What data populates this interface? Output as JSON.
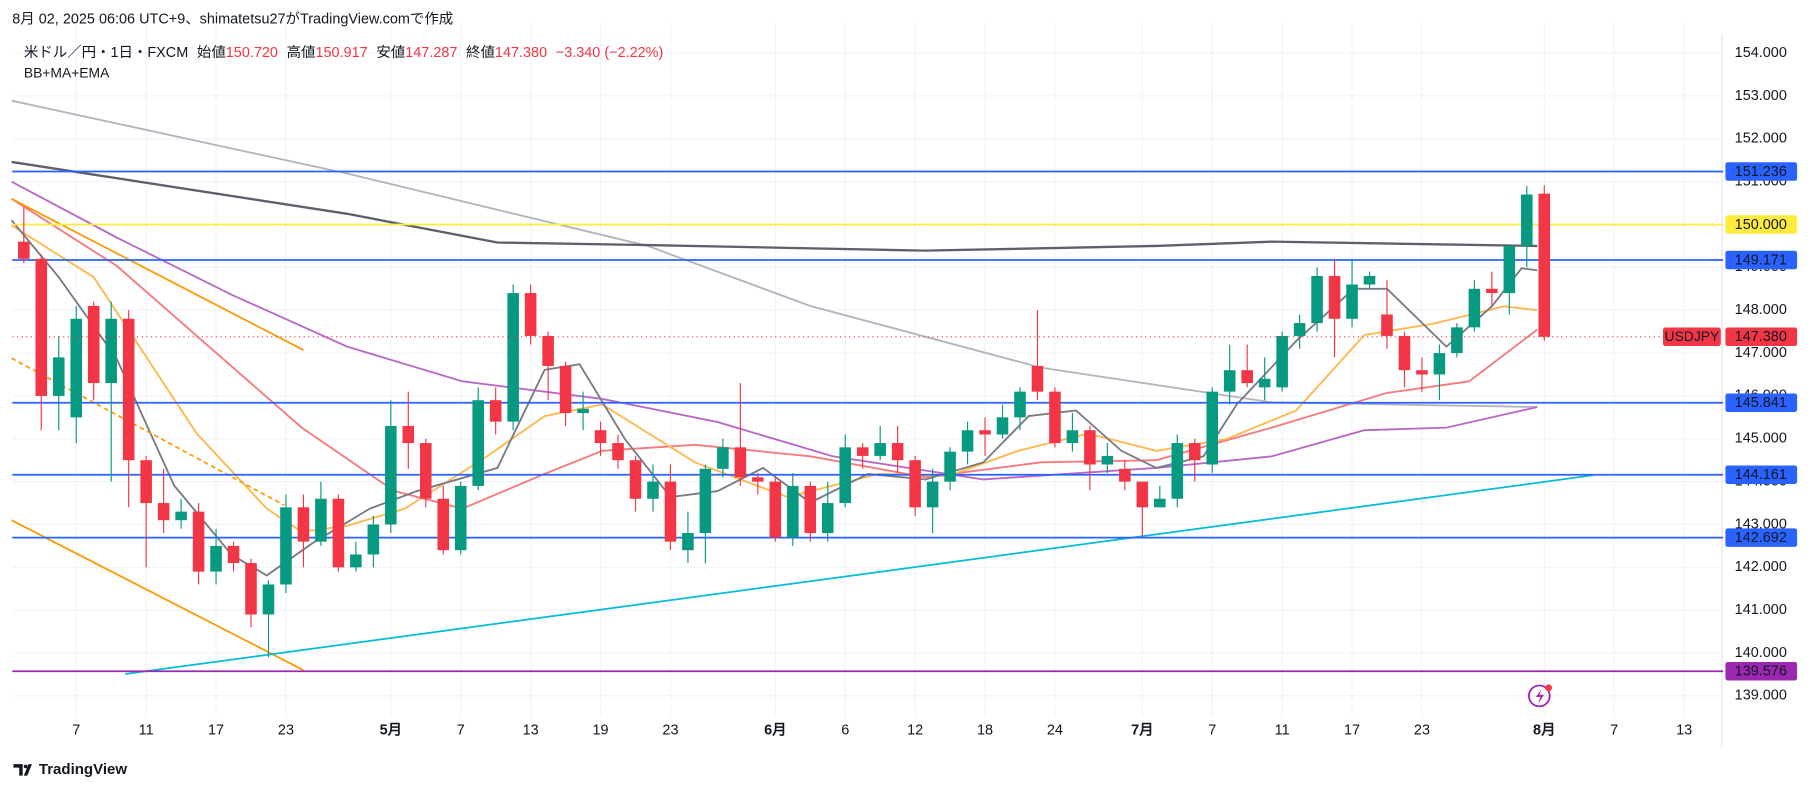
{
  "header": "8月 02, 2025 06:06 UTC+9、shimatetsu27がTradingView.comで作成",
  "footer": "TradingView",
  "legend": {
    "symbol": "米ドル／円・1日・FXCM",
    "open_label": "始値",
    "open": "150.720",
    "high_label": "高値",
    "high": "150.917",
    "low_label": "安値",
    "low": "147.287",
    "close_label": "終値",
    "close": "147.380",
    "change": "−3.340 (−2.22%)",
    "indicators": "BB+MA+EMA"
  },
  "chart_data": {
    "type": "candlestick",
    "up_color": "#089981",
    "down_color": "#f23645",
    "open": [
      149.6,
      149.2,
      146.0,
      145.5,
      148.1,
      146.3,
      147.8,
      144.5,
      143.5,
      143.1,
      143.3,
      141.9,
      142.5,
      142.1,
      140.9,
      141.6,
      143.4,
      142.6,
      143.6,
      142.0,
      142.3,
      143.0,
      145.3,
      144.9,
      143.6,
      142.4,
      143.9,
      145.9,
      145.4,
      148.4,
      147.4,
      146.7,
      145.6,
      145.2,
      144.9,
      144.5,
      143.6,
      144.0,
      142.4,
      142.8,
      144.3,
      144.8,
      144.1,
      144.0,
      142.7,
      143.9,
      142.8,
      143.5,
      144.8,
      144.6,
      144.9,
      144.5,
      143.4,
      144.0,
      144.7,
      145.2,
      145.1,
      145.5,
      146.7,
      146.1,
      144.9,
      145.2,
      144.4,
      144.3,
      144.0,
      143.4,
      143.6,
      144.9,
      144.4,
      146.1,
      146.6,
      146.2,
      146.2,
      147.4,
      147.7,
      148.8,
      147.8,
      148.6,
      147.9,
      147.4,
      146.6,
      146.5,
      147.0,
      147.6,
      148.5,
      148.4,
      149.5,
      150.72
    ],
    "high": [
      150.4,
      149.3,
      147.4,
      148.1,
      148.2,
      148.2,
      148.0,
      144.6,
      144.3,
      143.6,
      143.5,
      142.9,
      142.6,
      142.2,
      141.7,
      143.7,
      143.7,
      144.0,
      143.7,
      142.6,
      143.2,
      145.9,
      146.1,
      145.0,
      143.9,
      144.0,
      146.2,
      146.2,
      148.6,
      148.6,
      147.5,
      146.8,
      146.1,
      145.4,
      145.1,
      144.6,
      144.4,
      144.4,
      143.3,
      144.4,
      145.0,
      146.3,
      144.2,
      144.1,
      144.2,
      144.0,
      144.0,
      145.1,
      144.9,
      145.3,
      145.3,
      144.6,
      144.3,
      144.8,
      145.4,
      145.5,
      145.8,
      146.2,
      148.0,
      146.2,
      145.6,
      145.3,
      144.9,
      144.5,
      144.0,
      143.9,
      145.1,
      145.0,
      146.2,
      147.2,
      147.2,
      146.9,
      147.5,
      147.9,
      149.0,
      149.2,
      149.2,
      148.9,
      148.7,
      147.5,
      146.9,
      147.2,
      147.7,
      148.7,
      148.9,
      149.5,
      150.9,
      150.917
    ],
    "low": [
      149.1,
      145.2,
      145.2,
      144.9,
      145.9,
      144.0,
      143.4,
      142.0,
      142.8,
      142.9,
      141.6,
      141.6,
      141.9,
      140.6,
      139.9,
      141.4,
      142.0,
      142.5,
      141.9,
      141.9,
      142.0,
      142.8,
      144.3,
      143.4,
      142.3,
      142.3,
      143.8,
      145.1,
      145.2,
      147.2,
      145.9,
      145.3,
      145.2,
      144.6,
      144.3,
      143.3,
      143.3,
      142.4,
      142.1,
      142.1,
      144.1,
      143.9,
      143.7,
      142.6,
      142.5,
      142.6,
      142.6,
      143.4,
      144.3,
      144.5,
      144.2,
      143.2,
      142.8,
      143.8,
      144.4,
      144.6,
      145.0,
      145.2,
      145.9,
      144.8,
      144.7,
      143.8,
      144.2,
      143.8,
      142.7,
      143.4,
      143.4,
      144.0,
      144.2,
      145.8,
      146.2,
      145.9,
      146.1,
      147.1,
      147.5,
      146.9,
      147.6,
      148.5,
      147.1,
      146.2,
      146.1,
      145.9,
      146.9,
      147.5,
      148.1,
      147.9,
      149.0,
      147.287
    ],
    "close": [
      149.2,
      146.0,
      146.9,
      147.8,
      146.3,
      147.8,
      144.5,
      143.5,
      143.1,
      143.3,
      141.9,
      142.5,
      142.1,
      140.9,
      141.6,
      143.4,
      142.6,
      143.6,
      142.0,
      142.3,
      143.0,
      145.3,
      144.9,
      143.6,
      142.4,
      143.9,
      145.9,
      145.4,
      148.4,
      147.4,
      146.7,
      145.6,
      145.7,
      144.9,
      144.5,
      143.6,
      144.0,
      142.6,
      142.8,
      144.3,
      144.8,
      144.1,
      144.0,
      142.7,
      143.9,
      142.8,
      143.5,
      144.8,
      144.6,
      144.9,
      144.5,
      143.4,
      144.0,
      144.7,
      145.2,
      145.1,
      145.5,
      146.1,
      146.1,
      144.9,
      145.2,
      144.4,
      144.6,
      144.0,
      143.4,
      143.6,
      144.9,
      144.5,
      146.1,
      146.6,
      146.3,
      146.4,
      147.4,
      147.7,
      148.8,
      147.8,
      148.6,
      148.8,
      147.4,
      146.6,
      146.5,
      147.0,
      147.6,
      148.5,
      148.4,
      149.5,
      150.7,
      147.38
    ],
    "xlim": [
      -0.66,
      97.1
    ],
    "xticks": [
      {
        "value": 3,
        "label": "7"
      },
      {
        "value": 7,
        "label": "11"
      },
      {
        "value": 11,
        "label": "17"
      },
      {
        "value": 15,
        "label": "23"
      },
      {
        "value": 21,
        "label": "5月"
      },
      {
        "value": 25,
        "label": "7"
      },
      {
        "value": 29,
        "label": "13"
      },
      {
        "value": 33,
        "label": "19"
      },
      {
        "value": 37,
        "label": "23"
      },
      {
        "value": 43,
        "label": "6月"
      },
      {
        "value": 47,
        "label": "6"
      },
      {
        "value": 51,
        "label": "12"
      },
      {
        "value": 55,
        "label": "18"
      },
      {
        "value": 59,
        "label": "24"
      },
      {
        "value": 64,
        "label": "7月"
      },
      {
        "value": 68,
        "label": "7"
      },
      {
        "value": 72,
        "label": "11"
      },
      {
        "value": 76,
        "label": "17"
      },
      {
        "value": 80,
        "label": "23"
      },
      {
        "value": 87,
        "label": "8月"
      },
      {
        "value": 91,
        "label": "7"
      },
      {
        "value": 95,
        "label": "13"
      }
    ],
    "ylim": [
      138.73,
      154.43
    ],
    "yticks": [
      {
        "value": 139,
        "label": "139.000"
      },
      {
        "value": 140,
        "label": "140.000"
      },
      {
        "value": 141,
        "label": "141.000"
      },
      {
        "value": 142,
        "label": "142.000"
      },
      {
        "value": 143,
        "label": "143.000"
      },
      {
        "value": 144,
        "label": "144.000"
      },
      {
        "value": 145,
        "label": "145.000"
      },
      {
        "value": 146,
        "label": "146.000"
      },
      {
        "value": 147,
        "label": "147.000"
      },
      {
        "value": 148,
        "label": "148.000"
      },
      {
        "value": 149,
        "label": "149.000"
      },
      {
        "value": 150,
        "label": "150.000"
      },
      {
        "value": 151,
        "label": "151.000"
      },
      {
        "value": 152,
        "label": "152.000"
      },
      {
        "value": 153,
        "label": "153.000"
      },
      {
        "value": 154,
        "label": "154.000"
      }
    ],
    "grid": true,
    "indicators": [
      {
        "color": "#b2b5be",
        "x": [
          -0.7,
          18.5,
          35.7,
          45,
          58.2,
          71.4,
          86.6
        ],
        "values": [
          152.89,
          151.19,
          149.5,
          148.1,
          146.66,
          145.85,
          145.74
        ]
      },
      {
        "color": "#5d606b",
        "x": [
          -0.7,
          18.5,
          27.1,
          35.7,
          51.6,
          64.8,
          71.4,
          86.6
        ],
        "values": [
          151.46,
          150.25,
          149.58,
          149.52,
          149.39,
          149.5,
          149.6,
          149.5
        ]
      },
      {
        "color": "#ba68c8",
        "x": [
          -0.7,
          5.3,
          11.9,
          18.5,
          25.1,
          33.1,
          39.7,
          46.3,
          54.9,
          64.8,
          71.4,
          76.7,
          81.4,
          86.6
        ],
        "values": [
          151.0,
          149.7,
          148.36,
          147.15,
          146.34,
          145.93,
          145.39,
          144.59,
          144.05,
          144.32,
          144.59,
          145.2,
          145.26,
          145.74
        ]
      },
      {
        "color": "#f7797d",
        "x": [
          -0.7,
          5.3,
          10.6,
          15.9,
          21.2,
          25.1,
          29.8,
          33.1,
          38.4,
          45,
          51.6,
          58.2,
          64.8,
          71.4,
          78,
          82.7,
          86.6
        ],
        "values": [
          150.6,
          149.04,
          147.15,
          145.26,
          143.78,
          143.37,
          144.18,
          144.72,
          144.86,
          144.59,
          144.1,
          144.45,
          144.5,
          145.26,
          146.07,
          146.34,
          147.55
        ]
      },
      {
        "color": "#ffb74d",
        "x": [
          -0.7,
          4,
          9.9,
          13.9,
          15.9,
          18.5,
          21.8,
          26.5,
          29.8,
          33.1,
          38.4,
          43.7,
          48.9,
          52.9,
          56.9,
          60.9,
          64.8,
          68.8,
          72.8,
          76.7,
          80.7,
          84.7,
          86.6
        ],
        "values": [
          149.98,
          148.77,
          145.12,
          143.37,
          142.83,
          142.97,
          143.37,
          144.59,
          145.53,
          145.8,
          144.45,
          143.64,
          144.18,
          144.13,
          144.72,
          145.12,
          144.72,
          144.99,
          145.66,
          147.42,
          147.69,
          148.09,
          148.0
        ]
      },
      {
        "color": "#787b86",
        "x": [
          -0.7,
          2,
          5.3,
          8.6,
          11.9,
          13.9,
          16.5,
          19.8,
          22.5,
          27.1,
          29.8,
          31.8,
          34.4,
          37,
          39.7,
          42.3,
          45,
          48.3,
          51.6,
          54.9,
          57.5,
          60.2,
          62.8,
          64.8,
          67.5,
          69.4,
          72.8,
          76.1,
          78,
          81.4,
          84,
          85.7,
          86.6
        ],
        "values": [
          150.1,
          148.77,
          146.88,
          143.91,
          142.29,
          141.81,
          142.56,
          143.37,
          143.78,
          144.32,
          146.61,
          146.74,
          144.99,
          143.64,
          143.78,
          144.32,
          143.51,
          144.18,
          144.05,
          144.45,
          145.53,
          145.66,
          144.72,
          144.32,
          144.59,
          145.8,
          147.28,
          148.5,
          148.5,
          147.15,
          148.09,
          148.98,
          148.93
        ]
      }
    ],
    "trendlines": [
      {
        "color": "#ff9800",
        "x": [
          -0.7,
          16
        ],
        "values": [
          150.6,
          147.07
        ]
      },
      {
        "color": "#ff9800",
        "dashed": true,
        "x": [
          -0.7,
          14.9
        ],
        "values": [
          146.88,
          143.45
        ]
      },
      {
        "color": "#ff9800",
        "x": [
          -0.7,
          16
        ],
        "values": [
          143.1,
          139.6
        ]
      },
      {
        "color": "#00bcd4",
        "x": [
          5.8,
          89.8
        ],
        "values": [
          139.51,
          144.15
        ]
      }
    ],
    "levels": [
      {
        "value": 151.236,
        "label": "151.236",
        "color": "#2962ff"
      },
      {
        "value": 150,
        "label": "150.000",
        "color": "#ffeb3b"
      },
      {
        "value": 149.171,
        "label": "149.171",
        "color": "#2962ff"
      },
      {
        "value": 145.841,
        "label": "145.841",
        "color": "#2962ff"
      },
      {
        "value": 144.161,
        "label": "144.161",
        "color": "#2962ff"
      },
      {
        "value": 142.692,
        "label": "142.692",
        "color": "#2962ff"
      },
      {
        "value": 139.576,
        "label": "139.576",
        "color": "#9c27b0"
      }
    ],
    "last_price": {
      "name": "USDJPY",
      "value": 147.38,
      "label": "147.380",
      "color": "#f23645"
    }
  }
}
